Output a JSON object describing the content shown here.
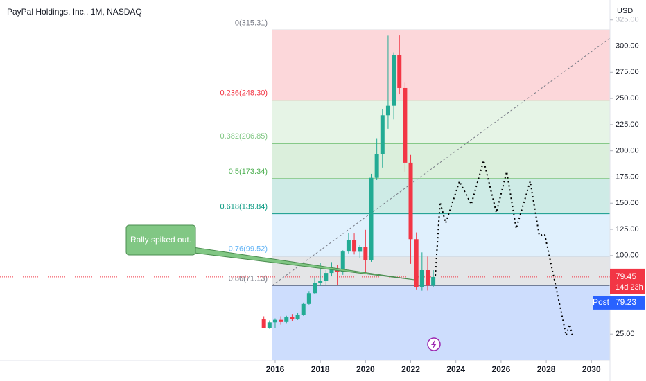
{
  "chart_data": {
    "type": "candlestick",
    "title": "PayPal Holdings, Inc., 1M, NASDAQ",
    "currency": "USD",
    "x": [
      2015.5,
      2015.75,
      2016.0,
      2016.25,
      2016.5,
      2016.75,
      2017.0,
      2017.25,
      2017.5,
      2017.75,
      2018.0,
      2018.25,
      2018.5,
      2018.75,
      2019.0,
      2019.25,
      2019.5,
      2019.75,
      2020.0,
      2020.25,
      2020.5,
      2020.75,
      2021.0,
      2021.25,
      2021.5,
      2021.75,
      2022.0,
      2022.25,
      2022.5,
      2022.75,
      2023.0
    ],
    "open": [
      39,
      31,
      36.2,
      38.6,
      36.5,
      41,
      39.5,
      43,
      53.7,
      64,
      73.6,
      75.9,
      83.3,
      87.8,
      84.1,
      103.8,
      114.5,
      103.6,
      108.2,
      95.7,
      174.2,
      197,
      234,
      243,
      291.5,
      260,
      188.6,
      115.6,
      69.8,
      86,
      71.2
    ],
    "high": [
      42,
      38,
      40,
      42,
      42.5,
      43.5,
      45,
      55,
      66,
      79,
      93,
      86,
      93.7,
      91,
      105,
      121.5,
      121,
      110,
      124.5,
      178,
      212,
      240,
      310,
      294,
      310.2,
      265,
      196,
      122,
      103,
      99,
      86
    ],
    "low": [
      30.5,
      30,
      30.5,
      34,
      35.5,
      37.5,
      38.5,
      42.5,
      53,
      63.5,
      71,
      72,
      80,
      72,
      81.5,
      102,
      101,
      97.5,
      82,
      94,
      172,
      184,
      221,
      230,
      254,
      180,
      92,
      67.6,
      66.4,
      66.5,
      70
    ],
    "close": [
      31,
      36.2,
      38.6,
      36.5,
      41,
      39.5,
      43,
      53.7,
      64,
      73.6,
      75.9,
      83.3,
      87.8,
      84.1,
      103.8,
      114.5,
      103.6,
      108.2,
      95.7,
      174.2,
      197,
      234,
      243,
      291.5,
      260,
      188.6,
      115.6,
      69.8,
      86,
      71.2,
      79.45
    ],
    "up_color": "#22ab94",
    "down_color": "#f23645",
    "projection": {
      "x": [
        2023.09,
        2023.3,
        2023.55,
        2024.16,
        2024.68,
        2025.23,
        2025.79,
        2026.25,
        2026.67,
        2027.29,
        2027.69,
        2027.93,
        2028.61,
        2028.88,
        2029.04,
        2029.16
      ],
      "values": [
        80.7,
        150.9,
        131.0,
        170.8,
        148.9,
        190.7,
        141.0,
        180.1,
        125.7,
        170.8,
        119.1,
        120.4,
        51.5,
        23.7,
        34.3,
        23.0
      ],
      "color": "#000000"
    },
    "fib_levels": [
      {
        "label": "0(315.31)",
        "value": 315.31,
        "color": "#787b86"
      },
      {
        "label": "0.236(248.30)",
        "value": 248.3,
        "color": "#f23645"
      },
      {
        "label": "0.382(206.85)",
        "value": 206.85,
        "color": "#81c784"
      },
      {
        "label": "0.5(173.34)",
        "value": 173.34,
        "color": "#4caf50"
      },
      {
        "label": "0.618(139.84)",
        "value": 139.84,
        "color": "#089981"
      },
      {
        "label": "0.76(99.52)",
        "value": 99.52,
        "color": "#64b5f6"
      },
      {
        "label": "0.86(71.13)",
        "value": 71.13,
        "color": "#787b86"
      }
    ],
    "annotation": "Rally spiked out.",
    "last_price": {
      "value": 79.45,
      "countdown": "14d 23h"
    },
    "post_price": {
      "name": "Post",
      "value": 79.23
    },
    "xlim": [
      2003.82,
      2030.82
    ],
    "ylim": [
      0,
      344
    ],
    "xticks": [
      2016,
      2018,
      2020,
      2022,
      2024,
      2026,
      2028,
      2030
    ],
    "yticks": [
      {
        "value": 25,
        "label": "25.00"
      },
      {
        "value": 100,
        "label": "100.00"
      },
      {
        "value": 125,
        "label": "125.00"
      },
      {
        "value": 150,
        "label": "150.00"
      },
      {
        "value": 175,
        "label": "175.00"
      },
      {
        "value": 200,
        "label": "200.00"
      },
      {
        "value": 225,
        "label": "225.00"
      },
      {
        "value": 250,
        "label": "250.00"
      },
      {
        "value": 275,
        "label": "275.00"
      },
      {
        "value": 300,
        "label": "300.00"
      },
      {
        "value": 325,
        "label": "325.00"
      }
    ]
  }
}
